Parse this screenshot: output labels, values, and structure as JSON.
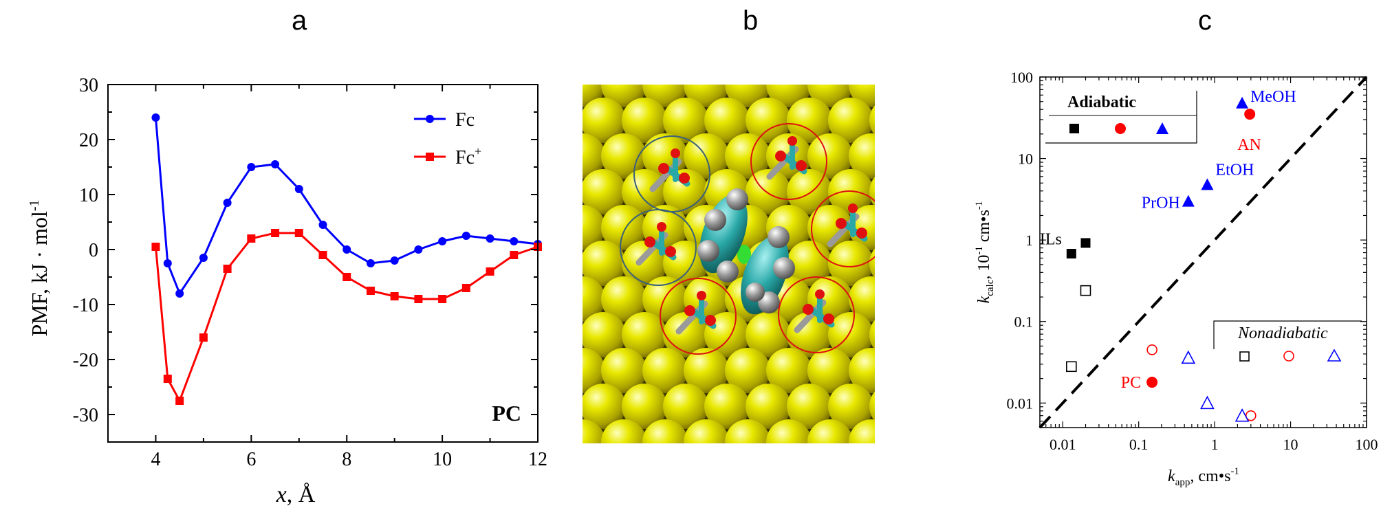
{
  "panels": {
    "a": "a",
    "b": "b",
    "c": "c"
  },
  "chart_data": [
    {
      "type": "line",
      "panel": "a",
      "xlabel_var": "x",
      "xlabel_unit": ", Å",
      "ylabel": "PMF, kJ · mol",
      "ylabel_sup": "-1",
      "xlim": [
        3,
        12
      ],
      "ylim": [
        -35,
        30
      ],
      "xticks": [
        4,
        6,
        8,
        10,
        12
      ],
      "yticks": [
        -30,
        -20,
        -10,
        0,
        10,
        20,
        30
      ],
      "annotation": "PC",
      "series": [
        {
          "name": "Fc",
          "color": "#0000ff",
          "marker": "circle",
          "x": [
            4.0,
            4.25,
            4.5,
            5.0,
            5.5,
            6.0,
            6.5,
            7.0,
            7.5,
            8.0,
            8.5,
            9.0,
            9.5,
            10.0,
            10.5,
            11.0,
            11.5,
            12.0
          ],
          "y": [
            24,
            -2.5,
            -8,
            -1.5,
            8.5,
            15,
            15.5,
            11,
            4.5,
            0,
            -2.5,
            -2,
            0,
            1.5,
            2.5,
            2,
            1.5,
            1
          ]
        },
        {
          "name": "Fc",
          "name_sup": "+",
          "color": "#ff0000",
          "marker": "square",
          "x": [
            4.0,
            4.25,
            4.5,
            5.0,
            5.5,
            6.0,
            6.5,
            7.0,
            7.5,
            8.0,
            8.5,
            9.0,
            9.5,
            10.0,
            10.5,
            11.0,
            11.5,
            12.0
          ],
          "y": [
            0.5,
            -23.5,
            -27.5,
            -16,
            -3.5,
            2,
            3,
            3,
            -1,
            -5,
            -7.5,
            -8.5,
            -9,
            -9,
            -7,
            -4,
            -1,
            0.5
          ]
        }
      ]
    },
    {
      "type": "scatter",
      "panel": "c",
      "xlabel_var": "k",
      "xlabel_sub": "app",
      "xlabel_unit": ", cm•s",
      "xlabel_sup": "-1",
      "ylabel_var": "k",
      "ylabel_sub": "calc",
      "ylabel_unit": ", 10",
      "ylabel_sup1": "-1",
      "ylabel_unit2": " cm•s",
      "ylabel_sup2": "-1",
      "xscale": "log",
      "yscale": "log",
      "xlim": [
        0.005,
        100
      ],
      "ylim": [
        0.005,
        100
      ],
      "xticks": [
        0.01,
        0.1,
        1,
        10,
        100
      ],
      "xtick_labels": [
        "0.01",
        "0.1",
        "1",
        "10",
        "100"
      ],
      "yticks": [
        0.01,
        0.1,
        1,
        10,
        100
      ],
      "ytick_labels": [
        "0.01",
        "0.1",
        "1",
        "10",
        "100"
      ],
      "diagonal": "dashed",
      "legend_adiabatic_title": "Adiabatic",
      "legend_nonadiabatic_title": "Nonadiabatic",
      "colors": {
        "ILs": "#000000",
        "AN_PC": "#ff0000",
        "alcohols": "#0000ff"
      },
      "annotations": [
        {
          "text": "MeOH",
          "x": 2.3,
          "y": 48,
          "color": "#0000ff"
        },
        {
          "text": "AN",
          "x": 2.9,
          "y": 35,
          "color": "#ff0000"
        },
        {
          "text": "EtOH",
          "x": 0.8,
          "y": 4.8,
          "color": "#0000ff"
        },
        {
          "text": "PrOH",
          "x": 0.45,
          "y": 3.0,
          "color": "#0000ff"
        },
        {
          "text": "ILs",
          "x": 0.013,
          "y": 0.7,
          "color": "#000000"
        },
        {
          "text": "PC",
          "x": 0.15,
          "y": 0.018,
          "color": "#ff0000"
        }
      ],
      "series": [
        {
          "group": "ILs",
          "kind": "adiabatic",
          "marker": "square",
          "filled": true,
          "color": "#000000",
          "points": [
            [
              0.013,
              0.68
            ],
            [
              0.02,
              0.92
            ]
          ]
        },
        {
          "group": "ILs",
          "kind": "nonadiabatic",
          "marker": "square",
          "filled": false,
          "color": "#000000",
          "points": [
            [
              0.013,
              0.028
            ],
            [
              0.02,
              0.24
            ]
          ]
        },
        {
          "group": "AN_PC",
          "kind": "adiabatic",
          "marker": "circle",
          "filled": true,
          "color": "#ff0000",
          "points": [
            [
              2.9,
              35
            ],
            [
              0.15,
              0.018
            ]
          ]
        },
        {
          "group": "AN_PC",
          "kind": "nonadiabatic",
          "marker": "circle",
          "filled": false,
          "color": "#ff0000",
          "points": [
            [
              0.15,
              0.045
            ],
            [
              3.0,
              0.007
            ]
          ]
        },
        {
          "group": "alcohols",
          "kind": "adiabatic",
          "marker": "triangle",
          "filled": true,
          "color": "#0000ff",
          "points": [
            [
              2.3,
              48
            ],
            [
              0.8,
              4.8
            ],
            [
              0.45,
              3.0
            ]
          ]
        },
        {
          "group": "alcohols",
          "kind": "nonadiabatic",
          "marker": "triangle",
          "filled": false,
          "color": "#0000ff",
          "points": [
            [
              0.45,
              0.036
            ],
            [
              0.8,
              0.01
            ],
            [
              2.3,
              0.007
            ]
          ]
        }
      ]
    }
  ]
}
